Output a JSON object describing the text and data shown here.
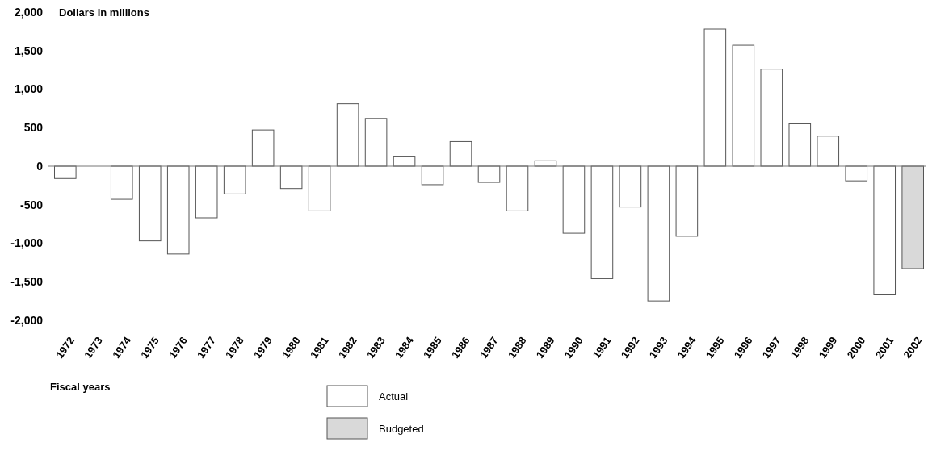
{
  "chart_data": {
    "type": "bar",
    "ylabel": "Dollars in millions",
    "xlabel": "Fiscal years",
    "categories": [
      "1972",
      "1973",
      "1974",
      "1975",
      "1976",
      "1977",
      "1978",
      "1979",
      "1980",
      "1981",
      "1982",
      "1983",
      "1984",
      "1985",
      "1986",
      "1987",
      "1988",
      "1989",
      "1990",
      "1991",
      "1992",
      "1993",
      "1994",
      "1995",
      "1996",
      "1997",
      "1998",
      "1999",
      "2000",
      "2001",
      "2002"
    ],
    "series": [
      {
        "name": "Actual",
        "color": "#ffffff",
        "values": [
          -160,
          0,
          -430,
          -970,
          -1140,
          -670,
          -360,
          470,
          -290,
          -580,
          810,
          620,
          130,
          -240,
          320,
          -210,
          -580,
          70,
          -870,
          -1460,
          -530,
          -1750,
          -910,
          1780,
          1570,
          1260,
          550,
          390,
          -190,
          -1670,
          null
        ]
      },
      {
        "name": "Budgeted",
        "color": "#d9d9d9",
        "values": [
          null,
          null,
          null,
          null,
          null,
          null,
          null,
          null,
          null,
          null,
          null,
          null,
          null,
          null,
          null,
          null,
          null,
          null,
          null,
          null,
          null,
          null,
          null,
          null,
          null,
          null,
          null,
          null,
          null,
          null,
          -1330
        ]
      }
    ],
    "ylim": [
      -2000,
      2000
    ],
    "yticks": [
      {
        "value": -2000,
        "label": "-2,000"
      },
      {
        "value": -1500,
        "label": "-1,500"
      },
      {
        "value": -1000,
        "label": "-1,000"
      },
      {
        "value": -500,
        "label": "-500"
      },
      {
        "value": 0,
        "label": "0"
      },
      {
        "value": 500,
        "label": "500"
      },
      {
        "value": 1000,
        "label": "1,000"
      },
      {
        "value": 1500,
        "label": "1,500"
      },
      {
        "value": 2000,
        "label": "2,000"
      }
    ],
    "legend": "bottom"
  }
}
